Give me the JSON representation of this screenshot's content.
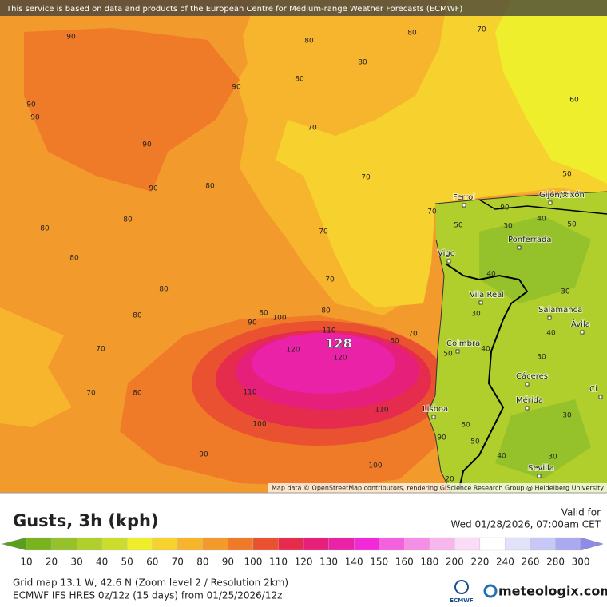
{
  "banner": "This service is based on data and products of the European Centre for Medium-range Weather Forecasts (ECMWF)",
  "map": {
    "contour_labels": [
      90,
      80,
      80,
      70,
      80,
      80,
      90,
      90,
      90,
      60,
      70,
      90,
      70,
      90,
      80,
      50,
      80,
      80,
      70,
      80,
      70,
      90,
      50,
      40,
      30,
      50,
      70,
      80,
      80,
      80,
      90,
      100,
      110,
      80,
      70,
      80,
      120,
      120,
      70,
      70,
      80,
      110,
      110,
      100,
      90,
      100,
      40,
      30,
      30,
      40,
      40,
      30,
      50,
      30,
      60,
      90,
      50,
      40,
      30,
      20
    ],
    "max_label": 128,
    "places": [
      "Ferrol",
      "Gijón/Xixón",
      "Ponferrada",
      "Vigo",
      "Vila Real",
      "Salamanca",
      "Ávila",
      "Coimbra",
      "Cáceres",
      "Mérida",
      "Lisboa",
      "Sevilla",
      "Ci"
    ],
    "attribution": "Map data © OpenStreetMap contributors, rendering GIScience Research Group @ Heidelberg University"
  },
  "panel": {
    "title": "Gusts, 3h (kph)",
    "valid_label": "Valid for",
    "valid_time": "Wed 01/28/2026, 07:00am CET",
    "grid_info": "Grid map 13.1 W, 42.6 N (Zoom level 2 / Resolution 2km)",
    "model_info": "ECMWF IFS HRES 0z/12z (15 days) from  01/25/2026/12z",
    "ecmwf_logo": "ECMWF",
    "brand": "meteologix.com"
  },
  "legend": {
    "ticks": [
      10,
      20,
      30,
      40,
      50,
      60,
      70,
      80,
      90,
      100,
      110,
      120,
      130,
      140,
      150,
      160,
      180,
      200,
      220,
      240,
      260,
      280,
      300
    ],
    "colors": [
      "#5a9e1e",
      "#79b41f",
      "#95c22a",
      "#b0cf2c",
      "#cbdc2e",
      "#eeee2c",
      "#f7d22e",
      "#f6b52c",
      "#f39a2c",
      "#ef7a28",
      "#ea5130",
      "#e52c4d",
      "#e51f7a",
      "#ea22a8",
      "#f02ad6",
      "#f460de",
      "#f68ee6",
      "#f8b6ee",
      "#fbdcf6",
      "#ffffff",
      "#e2e2fa",
      "#c8c8f6",
      "#aaaaf0",
      "#8c8cea"
    ]
  }
}
